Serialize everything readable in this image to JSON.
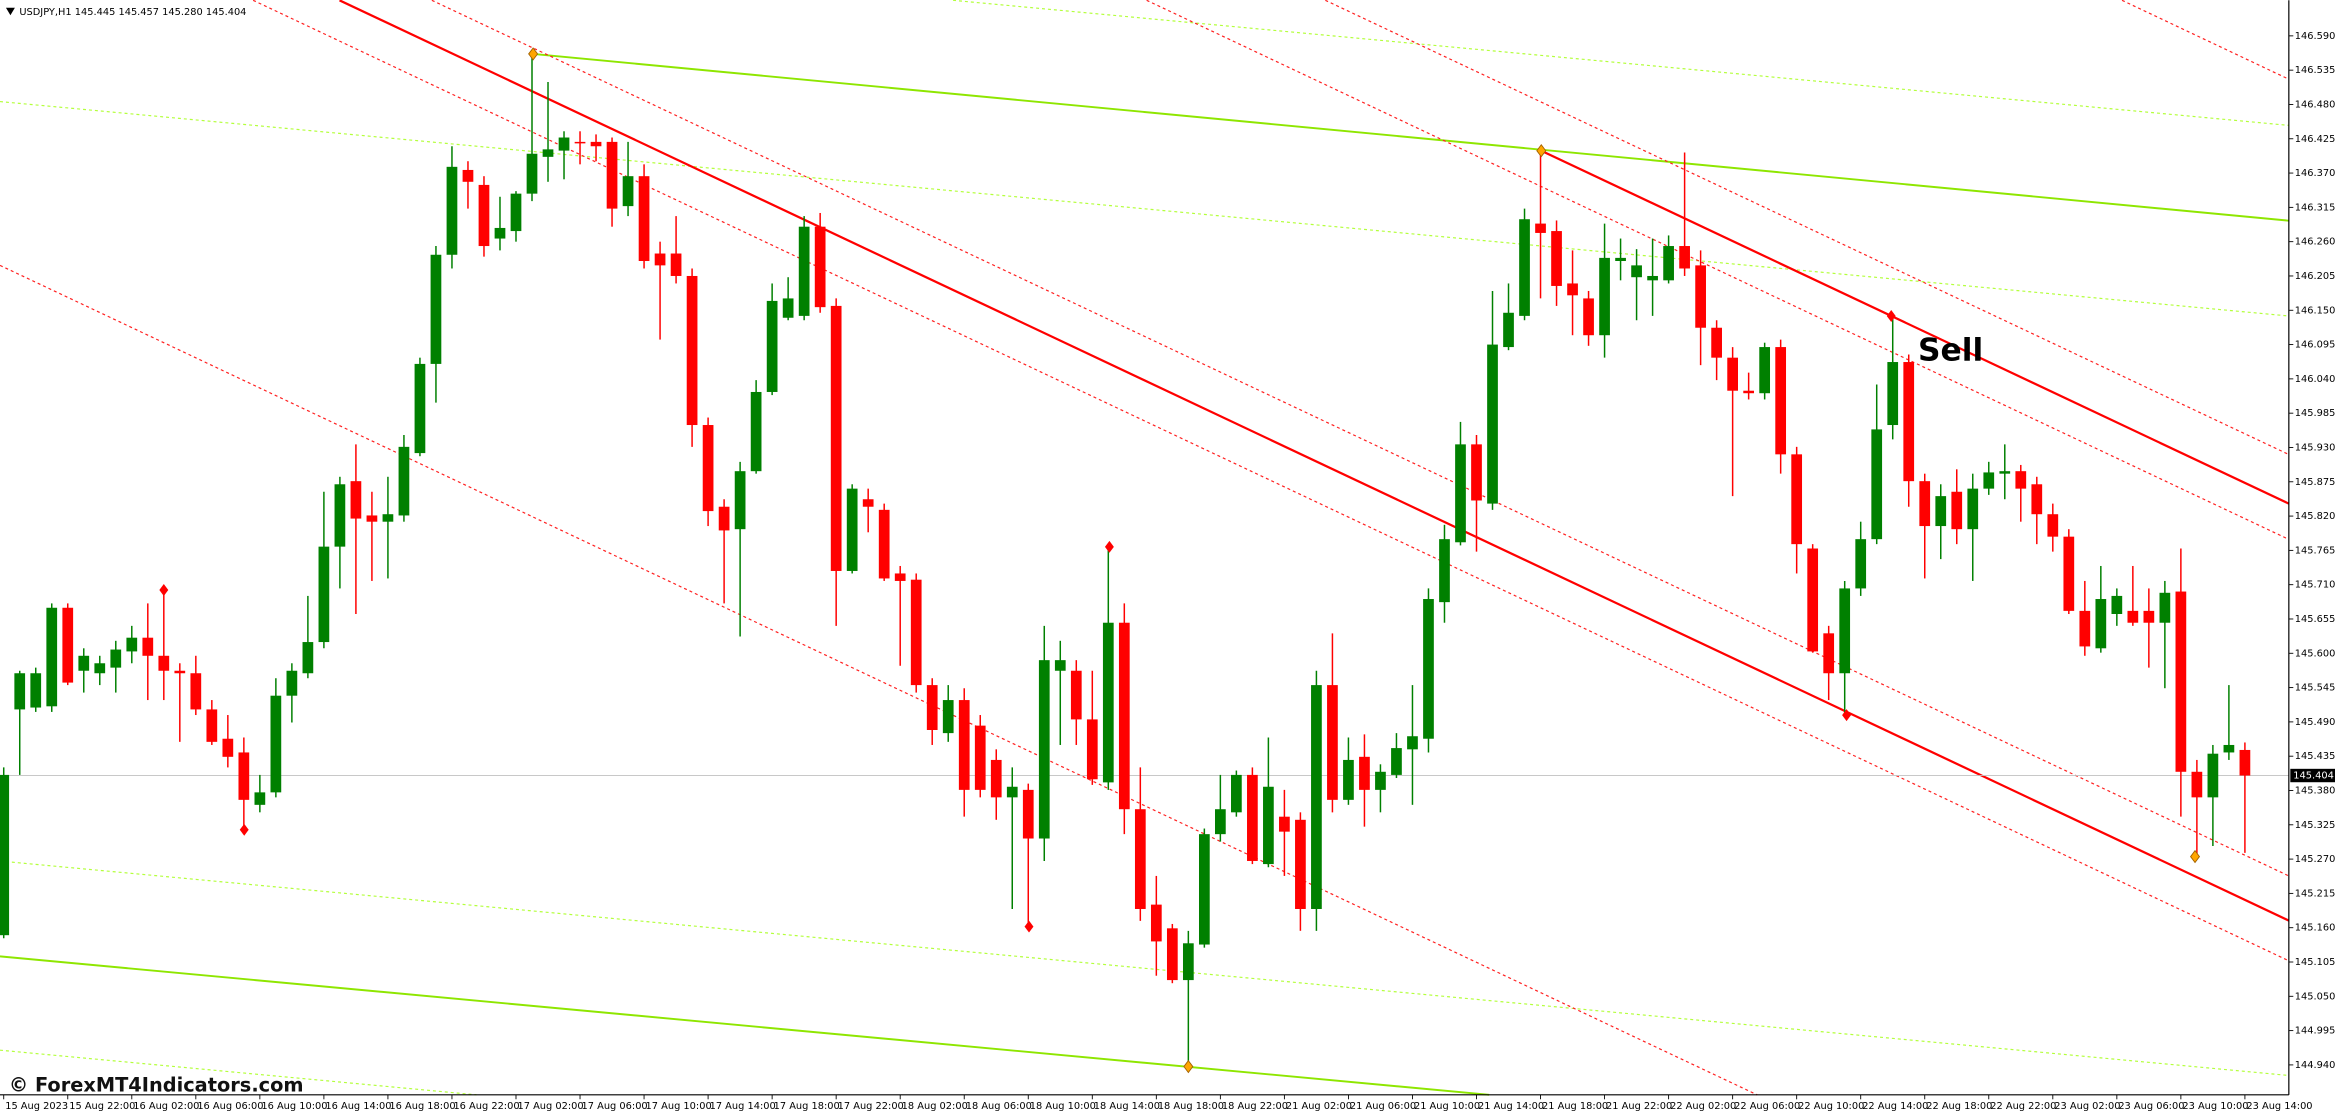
{
  "chart_data": {
    "type": "candlestick",
    "title": "USDJPY,H1 145.445 145.457 145.280 145.404",
    "watermark": "© ForexMT4Indicators.com",
    "annotations": [
      "Sell"
    ],
    "up_color": "#008000",
    "down_color": "#ff0000",
    "current_price": 145.404,
    "categories": [
      "15 Aug 2023",
      null,
      null,
      null,
      "15 Aug 22:00",
      null,
      null,
      null,
      "16 Aug 02:00",
      null,
      null,
      null,
      "16 Aug 06:00",
      null,
      null,
      null,
      "16 Aug 10:00",
      null,
      null,
      null,
      "16 Aug 14:00",
      null,
      null,
      null,
      "16 Aug 18:00",
      null,
      null,
      null,
      "16 Aug 22:00",
      null,
      null,
      null,
      "17 Aug 02:00",
      null,
      null,
      null,
      "17 Aug 06:00",
      null,
      null,
      null,
      "17 Aug 10:00",
      null,
      null,
      null,
      "17 Aug 14:00",
      null,
      null,
      null,
      "17 Aug 18:00",
      null,
      null,
      null,
      "17 Aug 22:00",
      null,
      null,
      null,
      "18 Aug 02:00",
      null,
      null,
      null,
      "18 Aug 06:00",
      null,
      null,
      null,
      "18 Aug 10:00",
      null,
      null,
      null,
      "18 Aug 14:00",
      null,
      null,
      null,
      "18 Aug 18:00",
      null,
      null,
      null,
      "18 Aug 22:00",
      null,
      null,
      null,
      "21 Aug 02:00",
      null,
      null,
      null,
      "21 Aug 06:00",
      null,
      null,
      null,
      "21 Aug 10:00",
      null,
      null,
      null,
      "21 Aug 14:00",
      null,
      null,
      null,
      "21 Aug 18:00",
      null,
      null,
      null,
      "21 Aug 22:00",
      null,
      null,
      null,
      "22 Aug 02:00",
      null,
      null,
      null,
      "22 Aug 06:00",
      null,
      null,
      null,
      "22 Aug 10:00",
      null,
      null,
      null,
      "22 Aug 14:00",
      null,
      null,
      null,
      "22 Aug 18:00",
      null,
      null,
      null,
      "22 Aug 22:00",
      null,
      null,
      null,
      "23 Aug 02:00",
      null,
      null,
      null,
      "23 Aug 06:00",
      null,
      null,
      null,
      "23 Aug 10:00",
      null,
      null,
      null,
      "23 Aug 14:00"
    ],
    "open": [
      145.148,
      145.51,
      145.513,
      145.515,
      145.673,
      145.572,
      145.568,
      145.577,
      145.603,
      145.625,
      145.596,
      145.572,
      145.568,
      145.51,
      145.463,
      145.441,
      145.357,
      145.377,
      145.532,
      145.568,
      145.618,
      145.771,
      145.876,
      145.821,
      145.811,
      145.821,
      145.921,
      146.064,
      146.239,
      146.375,
      146.351,
      146.265,
      146.277,
      146.337,
      146.396,
      146.406,
      146.42,
      146.42,
      146.42,
      146.317,
      146.365,
      146.241,
      146.241,
      146.205,
      145.966,
      145.835,
      145.799,
      145.892,
      146.019,
      146.138,
      146.141,
      146.284,
      146.157,
      145.732,
      145.847,
      145.83,
      145.728,
      145.718,
      145.549,
      145.472,
      145.525,
      145.484,
      145.429,
      145.369,
      145.381,
      145.303,
      145.572,
      145.572,
      145.494,
      145.393,
      145.649,
      145.35,
      145.197,
      145.159,
      145.076,
      145.133,
      145.31,
      145.345,
      145.405,
      145.262,
      145.338,
      145.333,
      145.19,
      145.549,
      145.365,
      145.434,
      145.381,
      145.405,
      145.446,
      145.463,
      145.682,
      145.778,
      145.935,
      145.84,
      146.091,
      146.141,
      146.289,
      146.277,
      146.193,
      146.169,
      146.11,
      146.229,
      146.203,
      146.198,
      146.198,
      146.253,
      146.222,
      146.122,
      146.074,
      146.021,
      146.017,
      146.091,
      145.919,
      145.768,
      145.632,
      145.568,
      145.704,
      145.783,
      145.966,
      146.067,
      145.876,
      145.804,
      145.859,
      145.799,
      145.864,
      145.888,
      145.892,
      145.871,
      145.823,
      145.787,
      145.668,
      145.608,
      145.663,
      145.668,
      145.668,
      145.649,
      145.699,
      145.41,
      145.369,
      145.441,
      145.445
    ],
    "high": [
      145.417,
      145.572,
      145.577,
      145.68,
      145.68,
      145.608,
      145.596,
      145.62,
      145.644,
      145.68,
      145.701,
      145.584,
      145.596,
      145.525,
      145.501,
      145.465,
      145.405,
      145.56,
      145.584,
      145.692,
      145.859,
      145.883,
      145.935,
      145.859,
      145.883,
      145.95,
      146.074,
      146.253,
      146.413,
      146.389,
      146.365,
      146.332,
      146.341,
      146.561,
      146.516,
      146.437,
      146.437,
      146.432,
      146.427,
      146.42,
      146.384,
      146.26,
      146.301,
      146.217,
      145.978,
      145.847,
      145.907,
      146.038,
      146.193,
      146.203,
      146.301,
      146.306,
      146.169,
      145.871,
      145.864,
      145.84,
      145.74,
      145.728,
      145.56,
      145.549,
      145.544,
      145.501,
      145.446,
      145.417,
      145.391,
      145.644,
      145.62,
      145.589,
      145.572,
      145.771,
      145.68,
      145.417,
      145.243,
      145.166,
      145.155,
      145.319,
      145.405,
      145.412,
      145.417,
      145.465,
      145.381,
      145.345,
      145.572,
      145.632,
      145.465,
      145.47,
      145.422,
      145.472,
      145.549,
      145.704,
      145.806,
      145.971,
      145.95,
      146.181,
      146.193,
      146.313,
      146.408,
      146.294,
      146.246,
      146.181,
      146.289,
      146.265,
      146.248,
      146.265,
      146.27,
      146.403,
      146.246,
      146.134,
      146.091,
      146.05,
      146.098,
      146.103,
      145.931,
      145.775,
      145.644,
      145.716,
      145.811,
      146.031,
      146.141,
      146.079,
      145.888,
      145.871,
      145.895,
      145.888,
      145.907,
      145.935,
      145.902,
      145.883,
      145.84,
      145.799,
      145.716,
      145.74,
      145.704,
      145.74,
      145.704,
      145.716,
      145.768,
      145.429,
      145.453,
      145.549,
      145.457
    ],
    "low": [
      145.143,
      145.405,
      145.506,
      145.506,
      145.549,
      145.537,
      145.549,
      145.537,
      145.584,
      145.525,
      145.525,
      145.458,
      145.501,
      145.453,
      145.417,
      145.317,
      145.345,
      145.369,
      145.489,
      145.56,
      145.608,
      145.704,
      145.663,
      145.716,
      145.72,
      145.811,
      145.916,
      146.002,
      146.217,
      146.313,
      146.236,
      146.246,
      146.26,
      146.325,
      146.356,
      146.36,
      146.384,
      146.389,
      146.284,
      146.301,
      146.217,
      146.103,
      146.193,
      145.931,
      145.804,
      145.68,
      145.627,
      145.888,
      146.014,
      146.134,
      146.134,
      146.146,
      145.644,
      145.728,
      145.794,
      145.716,
      145.58,
      145.537,
      145.453,
      145.458,
      145.338,
      145.369,
      145.333,
      145.19,
      145.166,
      145.267,
      145.453,
      145.453,
      145.389,
      145.381,
      145.31,
      145.171,
      145.083,
      145.071,
      144.937,
      145.128,
      145.298,
      145.338,
      145.262,
      145.257,
      145.243,
      145.155,
      145.155,
      145.345,
      145.357,
      145.322,
      145.345,
      145.4,
      145.357,
      145.441,
      145.649,
      145.773,
      145.763,
      145.83,
      146.086,
      146.134,
      146.169,
      146.157,
      146.11,
      146.093,
      146.074,
      146.198,
      146.134,
      146.141,
      146.193,
      146.205,
      146.062,
      146.038,
      145.852,
      146.007,
      146.007,
      145.888,
      145.728,
      145.601,
      145.525,
      145.501,
      145.692,
      145.775,
      145.943,
      145.835,
      145.72,
      145.751,
      145.775,
      145.716,
      145.854,
      145.847,
      145.811,
      145.775,
      145.763,
      145.663,
      145.596,
      145.601,
      145.644,
      145.644,
      145.577,
      145.544,
      145.338,
      145.274,
      145.291,
      145.429,
      145.28
    ],
    "close": [
      145.405,
      145.568,
      145.568,
      145.673,
      145.553,
      145.596,
      145.584,
      145.606,
      145.625,
      145.596,
      145.572,
      145.568,
      145.51,
      145.458,
      145.434,
      145.365,
      145.377,
      145.532,
      145.572,
      145.618,
      145.771,
      145.871,
      145.816,
      145.811,
      145.823,
      145.931,
      146.064,
      146.239,
      146.38,
      146.356,
      146.253,
      146.282,
      146.337,
      146.401,
      146.408,
      146.427,
      146.418,
      146.413,
      146.313,
      146.365,
      146.229,
      146.222,
      146.205,
      145.966,
      145.828,
      145.797,
      145.892,
      146.019,
      146.165,
      146.169,
      146.284,
      146.155,
      145.732,
      145.864,
      145.835,
      145.72,
      145.716,
      145.549,
      145.477,
      145.525,
      145.381,
      145.381,
      145.369,
      145.386,
      145.303,
      145.589,
      145.589,
      145.494,
      145.398,
      145.649,
      145.35,
      145.19,
      145.138,
      145.076,
      145.135,
      145.31,
      145.35,
      145.405,
      145.267,
      145.386,
      145.314,
      145.19,
      145.549,
      145.365,
      145.429,
      145.381,
      145.41,
      145.448,
      145.467,
      145.687,
      145.783,
      145.935,
      145.845,
      146.095,
      146.146,
      146.296,
      146.274,
      146.189,
      146.174,
      146.11,
      146.234,
      146.234,
      146.222,
      146.205,
      146.253,
      146.217,
      146.122,
      146.074,
      146.021,
      146.017,
      146.091,
      145.919,
      145.775,
      145.603,
      145.568,
      145.704,
      145.783,
      145.959,
      146.067,
      145.876,
      145.804,
      145.852,
      145.799,
      145.864,
      145.89,
      145.892,
      145.864,
      145.823,
      145.787,
      145.668,
      145.611,
      145.687,
      145.692,
      145.649,
      145.649,
      145.697,
      145.41,
      145.369,
      145.439,
      145.453,
      145.404
    ],
    "ylim": [
      144.892,
      146.647
    ],
    "yticks": [
      {
        "value": 146.59,
        "label": "146.590"
      },
      146.535,
      {
        "value": 146.48,
        "label": "146.480"
      },
      146.425,
      {
        "value": 146.37,
        "label": "146.370"
      },
      146.315,
      {
        "value": 146.26,
        "label": "146.260"
      },
      146.205,
      {
        "value": 146.15,
        "label": "146.150"
      },
      146.095,
      {
        "value": 146.04,
        "label": "146.040"
      },
      145.985,
      {
        "value": 145.93,
        "label": "145.930"
      },
      145.875,
      {
        "value": 145.82,
        "label": "145.820"
      },
      145.765,
      {
        "value": 145.71,
        "label": "145.710"
      },
      145.655,
      {
        "value": 145.6,
        "label": "145.600"
      },
      145.545,
      {
        "value": 145.49,
        "label": "145.490"
      },
      145.435,
      {
        "value": 145.38,
        "label": "145.380"
      },
      145.325,
      {
        "value": 145.27,
        "label": "145.270"
      },
      145.215,
      {
        "value": 145.16,
        "label": "145.160"
      },
      145.105,
      {
        "value": 145.05,
        "label": "145.050"
      },
      144.995,
      {
        "value": 144.94,
        "label": "144.940"
      }
    ]
  }
}
